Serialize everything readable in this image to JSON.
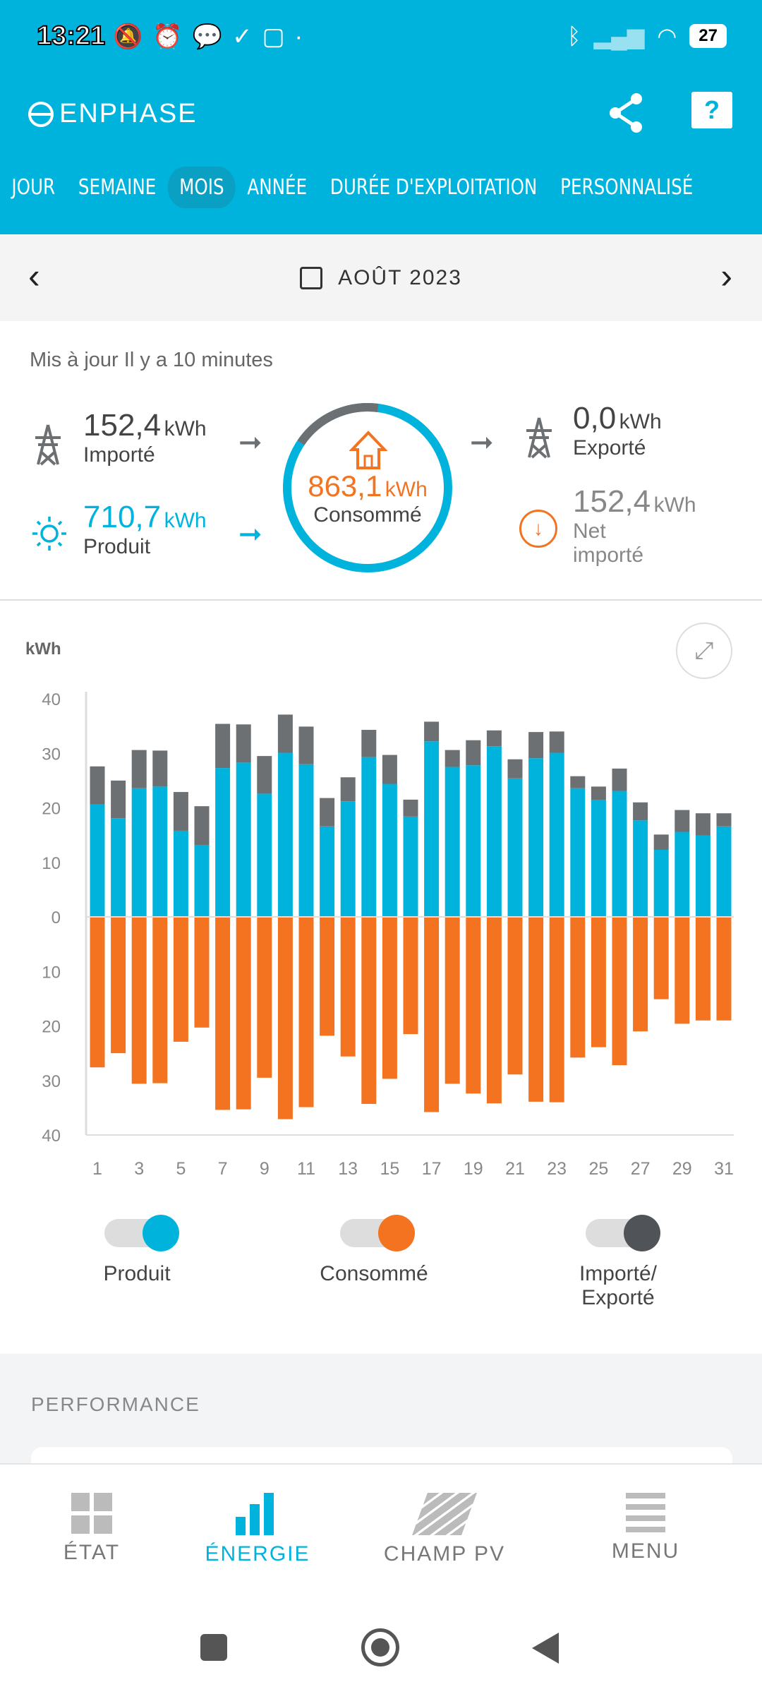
{
  "status_bar": {
    "time": "13:21",
    "battery": "27"
  },
  "header": {
    "brand": "ENPHASE",
    "share_icon": "share-icon",
    "help_label": "?"
  },
  "tabs": [
    {
      "label": "JOUR"
    },
    {
      "label": "SEMAINE"
    },
    {
      "label": "MOIS",
      "active": true
    },
    {
      "label": "ANNÉE"
    },
    {
      "label": "DURÉE D'EXPLOITATION"
    },
    {
      "label": "PERSONNALISÉ"
    }
  ],
  "date_nav": {
    "label": "AOÛT 2023"
  },
  "summary": {
    "updated": "Mis à jour Il y a 10 minutes",
    "imported": {
      "value": "152,4",
      "unit": "kWh",
      "label": "Importé"
    },
    "produced": {
      "value": "710,7",
      "unit": "kWh",
      "label": "Produit"
    },
    "consumed": {
      "value": "863,1",
      "unit": "kWh",
      "label": "Consommé"
    },
    "exported": {
      "value": "0,0",
      "unit": "kWh",
      "label": "Exporté"
    },
    "net": {
      "value": "152,4",
      "unit": "kWh",
      "label1": "Net",
      "label2": "importé"
    }
  },
  "colors": {
    "brand": "#00b3dd",
    "produced": "#00b3dd",
    "consumed": "#f37321",
    "imported": "#6d7073"
  },
  "chart_data": {
    "type": "bar",
    "ylabel": "kWh",
    "ylim": [
      -40,
      40
    ],
    "yticks": [
      "40",
      "30",
      "20",
      "10",
      "0",
      "10",
      "20",
      "30",
      "40"
    ],
    "categories": [
      1,
      2,
      3,
      4,
      5,
      6,
      7,
      8,
      9,
      10,
      11,
      12,
      13,
      14,
      15,
      16,
      17,
      18,
      19,
      20,
      21,
      22,
      23,
      24,
      25,
      26,
      27,
      28,
      29,
      30,
      31
    ],
    "xtick_labels": [
      "1",
      "3",
      "5",
      "7",
      "9",
      "11",
      "13",
      "15",
      "17",
      "19",
      "21",
      "23",
      "25",
      "27",
      "29",
      "31"
    ],
    "series": [
      {
        "name": "Produit",
        "values": [
          20.6,
          18.1,
          23.6,
          23.9,
          15.8,
          13.2,
          27.3,
          28.3,
          22.6,
          30.1,
          28.0,
          16.6,
          21.2,
          29.3,
          24.4,
          18.4,
          32.2,
          27.5,
          27.8,
          31.3,
          25.4,
          29.1,
          30.1,
          23.6,
          21.4,
          23.1,
          17.7,
          12.3,
          15.6,
          14.9,
          16.6
        ]
      },
      {
        "name": "Importé/Exporté",
        "values": [
          7.0,
          6.9,
          7.0,
          6.6,
          7.1,
          7.1,
          8.1,
          7.0,
          6.9,
          7.0,
          6.9,
          5.2,
          4.4,
          5.0,
          5.3,
          3.1,
          3.6,
          3.1,
          4.6,
          2.9,
          3.5,
          4.8,
          3.9,
          2.2,
          2.5,
          4.1,
          3.3,
          2.8,
          4.0,
          4.1,
          2.4
        ]
      },
      {
        "name": "Consommé",
        "values": [
          -27.6,
          -25.0,
          -30.6,
          -30.5,
          -22.9,
          -20.3,
          -35.4,
          -35.3,
          -29.5,
          -37.1,
          -34.9,
          -21.8,
          -25.6,
          -34.3,
          -29.7,
          -21.5,
          -35.8,
          -30.6,
          -32.4,
          -34.2,
          -28.9,
          -33.9,
          -34.0,
          -25.8,
          -23.9,
          -27.2,
          -21.0,
          -15.1,
          -19.6,
          -19.0,
          -19.0
        ]
      }
    ],
    "legend": [
      {
        "label": "Produit",
        "on": true
      },
      {
        "label": "Consommé",
        "on": true
      },
      {
        "label": "Importé/",
        "label2": "Exporté",
        "on": true
      }
    ]
  },
  "performance": {
    "title": "PERFORMANCE"
  },
  "bottom_nav": [
    {
      "label": "ÉTAT"
    },
    {
      "label": "ÉNERGIE",
      "active": true
    },
    {
      "label": "CHAMP PV"
    },
    {
      "label": "MENU"
    }
  ]
}
